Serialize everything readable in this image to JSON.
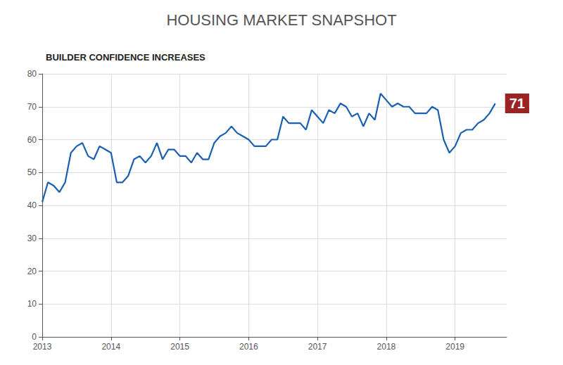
{
  "chart_data": {
    "type": "line",
    "title": "HOUSING MARKET SNAPSHOT",
    "subtitle": "BUILDER CONFIDENCE INCREASES",
    "color": "#1a5fb0",
    "x": [
      2013,
      2013.083333,
      2013.166667,
      2013.25,
      2013.333333,
      2013.416667,
      2013.5,
      2013.583333,
      2013.666667,
      2013.75,
      2013.833333,
      2013.916667,
      2014,
      2014.083333,
      2014.166667,
      2014.25,
      2014.333333,
      2014.416667,
      2014.5,
      2014.583333,
      2014.666667,
      2014.75,
      2014.833333,
      2014.916667,
      2015,
      2015.083333,
      2015.166667,
      2015.25,
      2015.333333,
      2015.416667,
      2015.5,
      2015.583333,
      2015.666667,
      2015.75,
      2015.833333,
      2015.916667,
      2016,
      2016.083333,
      2016.166667,
      2016.25,
      2016.333333,
      2016.416667,
      2016.5,
      2016.583333,
      2016.666667,
      2016.75,
      2016.833333,
      2016.916667,
      2017,
      2017.083333,
      2017.166667,
      2017.25,
      2017.333333,
      2017.416667,
      2017.5,
      2017.583333,
      2017.666667,
      2017.75,
      2017.833333,
      2017.916667,
      2018,
      2018.083333,
      2018.166667,
      2018.25,
      2018.333333,
      2018.416667,
      2018.5,
      2018.583333,
      2018.666667,
      2018.75,
      2018.833333,
      2018.916667,
      2019,
      2019.083333,
      2019.166667,
      2019.25,
      2019.333333,
      2019.416667,
      2019.5,
      2019.583333
    ],
    "values": [
      41,
      47,
      46,
      44,
      47,
      56,
      58,
      59,
      55,
      54,
      58,
      57,
      56,
      47,
      47,
      49,
      54,
      55,
      53,
      55,
      59,
      54,
      57,
      57,
      55,
      55,
      53,
      56,
      54,
      54,
      59,
      61,
      62,
      64,
      62,
      61,
      60,
      58,
      58,
      58,
      60,
      60,
      67,
      65,
      65,
      65,
      63,
      69,
      67,
      65,
      69,
      68,
      71,
      70,
      67,
      68,
      64,
      68,
      66,
      74,
      72,
      70,
      71,
      70,
      70,
      68,
      68,
      68,
      70,
      69,
      60,
      56,
      58,
      62,
      63,
      63,
      65,
      66,
      68,
      71
    ],
    "xlim": [
      2013,
      2019.75
    ],
    "xticks": [
      2013,
      2014,
      2015,
      2016,
      2017,
      2018,
      2019
    ],
    "ylim": [
      0,
      80
    ],
    "yticks": [
      0,
      10,
      20,
      30,
      40,
      50,
      60,
      70,
      80
    ],
    "grid": true,
    "annotations": [
      {
        "text": "71",
        "x": 2019.583333,
        "y": 71,
        "color": "#9b2323"
      }
    ]
  }
}
